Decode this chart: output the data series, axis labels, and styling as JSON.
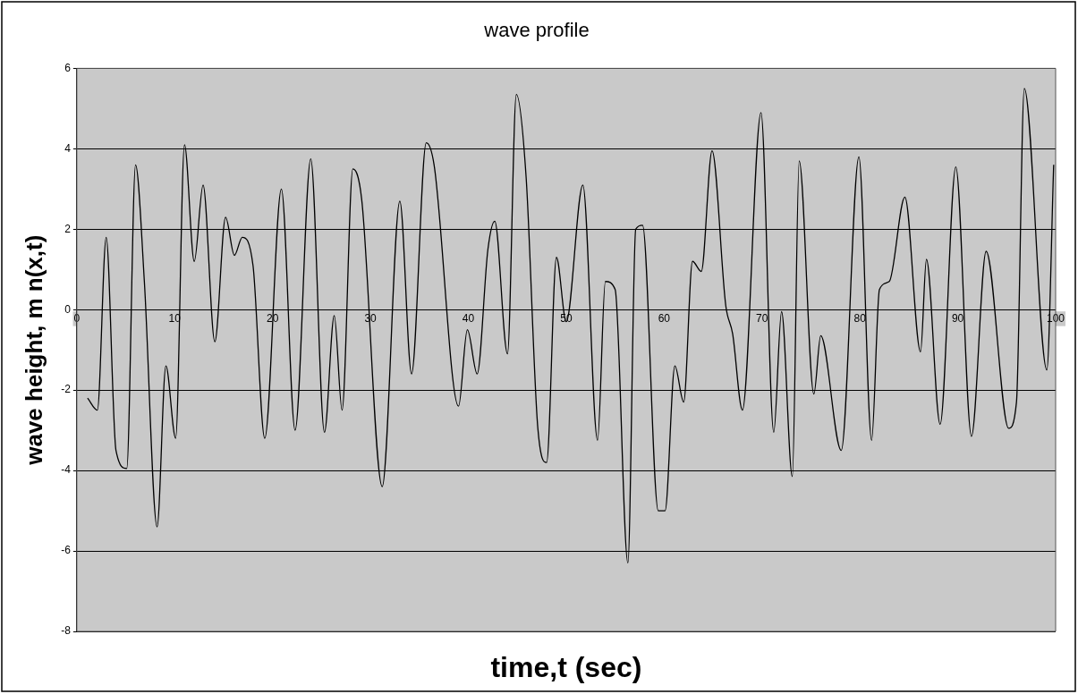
{
  "chart_data": {
    "type": "line",
    "title": "wave profile",
    "xlabel": "time,t (sec)",
    "ylabel": "wave height, m n(x,t)",
    "x": [
      1.1,
      2.1,
      3.0,
      4.0,
      5.1,
      6.0,
      6.9,
      8.2,
      9.1,
      10.1,
      11.0,
      12.0,
      12.9,
      14.1,
      15.2,
      16.1,
      16.9,
      18.0,
      19.2,
      20.9,
      22.3,
      23.9,
      25.3,
      26.3,
      27.1,
      28.2,
      29.1,
      31.2,
      33.0,
      34.2,
      35.7,
      36.5,
      39.0,
      39.9,
      40.9,
      42.0,
      42.7,
      44.0,
      44.9,
      45.9,
      47.1,
      48.0,
      49.0,
      50.0,
      51.7,
      53.2,
      54.0,
      55.0,
      56.3,
      57.1,
      57.8,
      59.4,
      60.1,
      61.1,
      62.0,
      62.9,
      63.8,
      64.9,
      66.3,
      67.0,
      68.0,
      69.9,
      71.2,
      72.0,
      73.1,
      73.8,
      75.3,
      76.0,
      78.1,
      79.9,
      81.2,
      82.0,
      83.0,
      84.6,
      86.2,
      86.8,
      88.2,
      89.8,
      91.4,
      92.9,
      95.2,
      96.0,
      96.8,
      99.1,
      99.8
    ],
    "series": [
      {
        "color": "#000000",
        "values": [
          -2.2,
          -2.5,
          1.8,
          -3.5,
          -3.95,
          3.6,
          0.7,
          -5.4,
          -1.4,
          -3.2,
          4.1,
          1.2,
          3.1,
          -0.8,
          2.3,
          1.35,
          1.8,
          1.1,
          -3.2,
          3.0,
          -3.0,
          3.75,
          -3.05,
          -0.15,
          -2.5,
          3.5,
          2.75,
          -4.4,
          2.7,
          -1.6,
          4.15,
          3.6,
          -2.4,
          -0.5,
          -1.6,
          1.5,
          2.2,
          -1.1,
          5.35,
          3.3,
          -2.95,
          -3.8,
          1.3,
          -0.3,
          3.1,
          -3.25,
          0.7,
          0.5,
          -6.3,
          2.0,
          2.1,
          -5.0,
          -5.0,
          -1.4,
          -2.3,
          1.2,
          0.95,
          3.95,
          0.1,
          -0.6,
          -2.5,
          4.9,
          -3.05,
          -0.05,
          -4.15,
          3.7,
          -2.1,
          -0.65,
          -3.5,
          3.8,
          -3.25,
          0.5,
          0.7,
          2.8,
          -1.05,
          1.25,
          -2.85,
          3.55,
          -3.15,
          1.45,
          -2.95,
          -2.3,
          5.5,
          -1.5,
          3.6
        ]
      }
    ],
    "xlim": [
      0,
      100
    ],
    "xticks": [
      0,
      10,
      20,
      30,
      40,
      50,
      60,
      70,
      80,
      90,
      100
    ],
    "ylim": [
      -8,
      6
    ],
    "yticks": [
      -8,
      -6,
      -4,
      -2,
      0,
      2,
      4,
      6
    ],
    "grid": "y",
    "legend": false,
    "marker": "none",
    "line_style": "solid"
  }
}
